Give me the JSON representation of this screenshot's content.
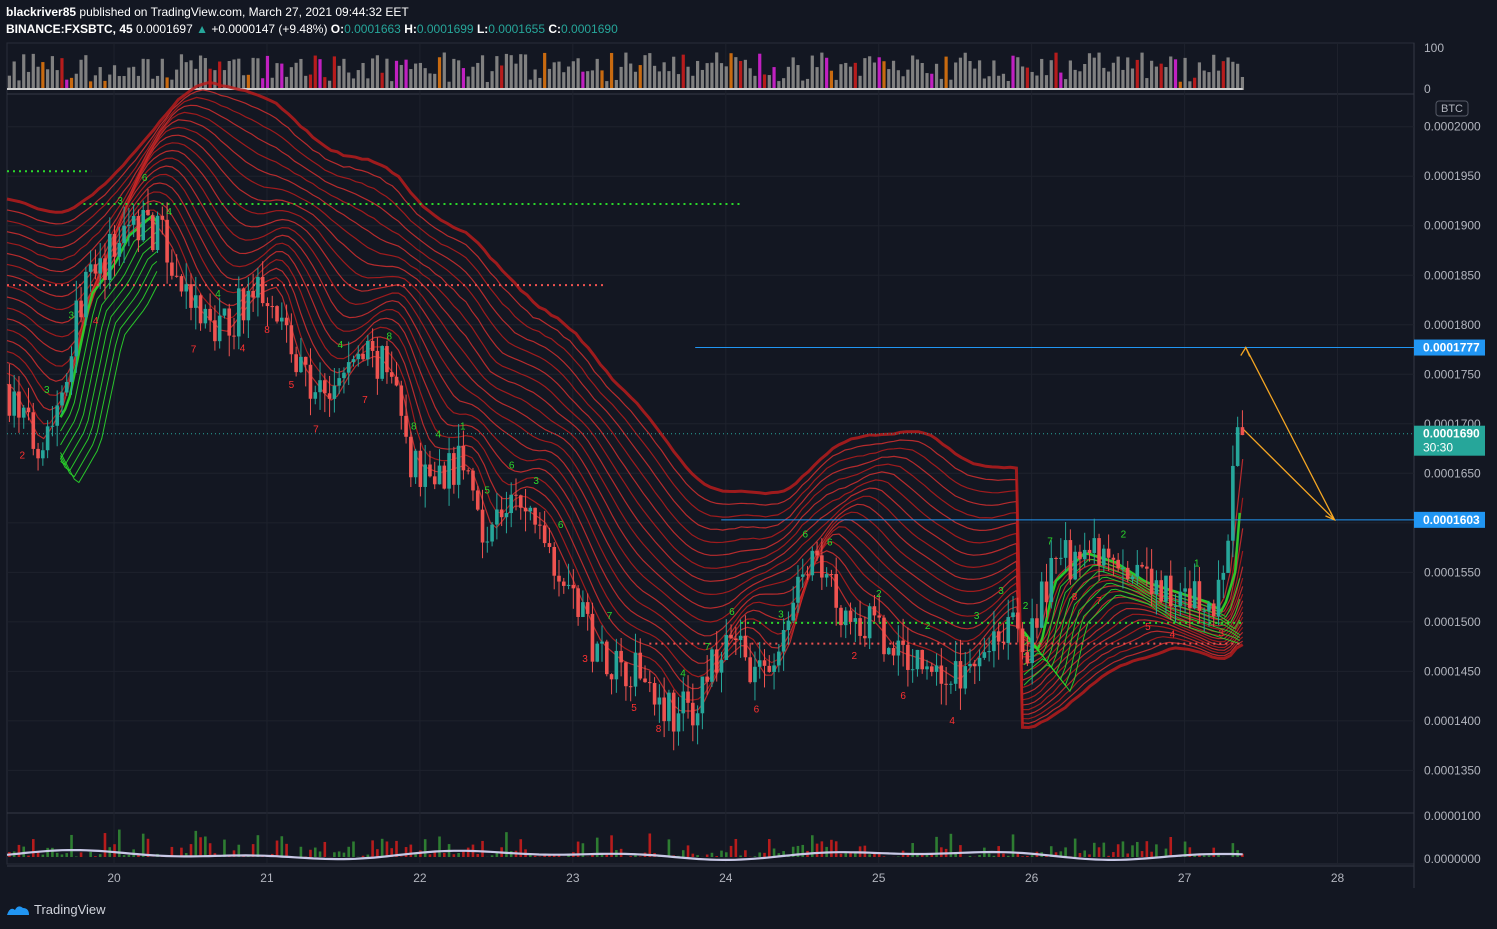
{
  "header": {
    "author": "blackriver85",
    "published": "published on TradingView.com, March 27, 2021 09:44:32 EET",
    "symbol": "BINANCE:FXSBTC, 45",
    "last": "0.0001697",
    "change": "+0.0000147 (+9.48%)",
    "o_label": "O:",
    "o_val": "0.0001663",
    "h_label": "H:",
    "h_val": "0.0001699",
    "l_label": "L:",
    "l_val": "0.0001655",
    "c_label": "C:",
    "c_val": "0.0001690"
  },
  "footer": {
    "brand": "TradingView"
  },
  "colors": {
    "bg": "#131722",
    "up": "#26a69a",
    "down": "#ef5350",
    "ribbon_red": "#d32f2f",
    "ribbon_green": "#2bd92b",
    "accent": "#2196f3",
    "arrow": "#f5a623"
  },
  "chart_data": {
    "type": "candlestick",
    "currency": "BTC",
    "x_ticks": [
      "20",
      "21",
      "22",
      "23",
      "24",
      "25",
      "26",
      "27",
      "28"
    ],
    "x_range": [
      19.3,
      28.5
    ],
    "ylim": [
      0.000131,
      0.000203
    ],
    "y_ticks": [
      "0.0002000",
      "0.0001950",
      "0.0001900",
      "0.0001850",
      "0.0001800",
      "0.0001750",
      "0.0001700",
      "0.0001650",
      "0.0001600",
      "0.0001550",
      "0.0001500",
      "0.0001450",
      "0.0001400",
      "0.0001350"
    ],
    "price_labels": [
      {
        "text": "0.0001777",
        "value": 0.0001777,
        "color": "#2196f3"
      },
      {
        "text": "0.0001690",
        "sub": "30:30",
        "value": 0.000169,
        "color": "#26a69a"
      },
      {
        "text": "0.0001603",
        "value": 0.0001603,
        "color": "#2196f3"
      }
    ],
    "horizontal_lines": [
      {
        "value": 0.0001777,
        "from": 23.8,
        "style": "solid",
        "color": "#2196f3"
      },
      {
        "value": 0.0001603,
        "from": 23.97,
        "style": "solid",
        "color": "#2196f3"
      },
      {
        "value": 0.000169,
        "from": 19.3,
        "style": "dotted",
        "color": "#26a69a"
      }
    ],
    "level_lines": [
      {
        "value": 0.0001955,
        "from": 19.3,
        "to": 19.85,
        "color": "#2bd92b"
      },
      {
        "value": 0.0001922,
        "from": 19.8,
        "to": 24.1,
        "color": "#2bd92b"
      },
      {
        "value": 0.000184,
        "from": 19.3,
        "to": 23.2,
        "color": "#ef5350"
      },
      {
        "value": 0.0001499,
        "from": 24.1,
        "to": 27.38,
        "color": "#2bd92b"
      },
      {
        "value": 0.0001478,
        "from": 23.5,
        "to": 27.38,
        "color": "#ef5350"
      }
    ],
    "projection": [
      [
        27.38,
        0.0001695
      ],
      [
        27.98,
        0.0001603
      ],
      [
        27.4,
        0.0001777
      ]
    ],
    "close_path": [
      [
        19.3,
        0.000174
      ],
      [
        19.5,
        0.000168
      ],
      [
        19.65,
        0.000172
      ],
      [
        19.8,
        0.000183
      ],
      [
        19.95,
        0.000186
      ],
      [
        20.05,
        0.000189
      ],
      [
        20.2,
        0.000191
      ],
      [
        20.35,
        0.000188
      ],
      [
        20.5,
        0.000182
      ],
      [
        20.7,
        0.000179
      ],
      [
        20.9,
        0.000183
      ],
      [
        21.05,
        0.000184
      ],
      [
        21.2,
        0.000176
      ],
      [
        21.4,
        0.000172
      ],
      [
        21.55,
        0.000176
      ],
      [
        21.7,
        0.000177
      ],
      [
        21.85,
        0.000174
      ],
      [
        21.95,
        0.000166
      ],
      [
        22.1,
        0.000165
      ],
      [
        22.3,
        0.000166
      ],
      [
        22.45,
        0.000159
      ],
      [
        22.6,
        0.000162
      ],
      [
        22.8,
        0.00016
      ],
      [
        22.95,
        0.000155
      ],
      [
        23.15,
        0.000148
      ],
      [
        23.3,
        0.000146
      ],
      [
        23.5,
        0.000145
      ],
      [
        23.65,
        0.000141
      ],
      [
        23.8,
        0.000141
      ],
      [
        23.95,
        0.000146
      ],
      [
        24.1,
        0.000148
      ],
      [
        24.25,
        0.000144
      ],
      [
        24.4,
        0.000148
      ],
      [
        24.5,
        0.000155
      ],
      [
        24.65,
        0.000155
      ],
      [
        24.8,
        0.000151
      ],
      [
        24.95,
        0.00015
      ],
      [
        25.1,
        0.000147
      ],
      [
        25.3,
        0.000146
      ],
      [
        25.5,
        0.000144
      ],
      [
        25.7,
        0.000148
      ],
      [
        25.85,
        0.00015
      ],
      [
        26.0,
        0.000147
      ],
      [
        26.1,
        0.000154
      ],
      [
        26.3,
        0.000157
      ],
      [
        26.5,
        0.000156
      ],
      [
        26.7,
        0.000154
      ],
      [
        26.9,
        0.000153
      ],
      [
        27.1,
        0.000152
      ],
      [
        27.2,
        0.000151
      ],
      [
        27.28,
        0.000155
      ],
      [
        27.33,
        0.000165
      ],
      [
        27.38,
        0.000169
      ]
    ],
    "volume_ylim": [
      0,
      100
    ],
    "volume_ticks": [
      "100",
      "0"
    ],
    "oscillator_ticks": [
      "0.0000100",
      "0.0000000"
    ]
  }
}
